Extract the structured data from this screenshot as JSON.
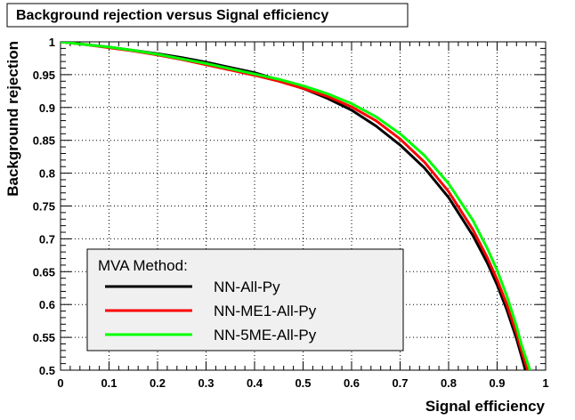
{
  "chart_data": {
    "type": "line",
    "title": "Background rejection versus Signal efficiency",
    "xlabel": "Signal efficiency",
    "ylabel": "Background rejection",
    "xlim": [
      0,
      1
    ],
    "ylim": [
      0.5,
      1
    ],
    "xticks": [
      "0",
      "0.1",
      "0.2",
      "0.3",
      "0.4",
      "0.5",
      "0.6",
      "0.7",
      "0.8",
      "0.9",
      "1"
    ],
    "yticks": [
      "0.5",
      "0.55",
      "0.6",
      "0.65",
      "0.7",
      "0.75",
      "0.8",
      "0.85",
      "0.9",
      "0.95",
      "1"
    ],
    "grid": true,
    "legend_title": "MVA Method:",
    "legend_position": "bottom-left",
    "series": [
      {
        "name": "NN-All-Py",
        "color": "#000000",
        "x": [
          0,
          0.05,
          0.1,
          0.15,
          0.2,
          0.25,
          0.3,
          0.35,
          0.4,
          0.45,
          0.5,
          0.55,
          0.6,
          0.65,
          0.7,
          0.75,
          0.8,
          0.85,
          0.88,
          0.9,
          0.92,
          0.94,
          0.95,
          0.96
        ],
        "y": [
          1.0,
          0.996,
          0.992,
          0.987,
          0.982,
          0.976,
          0.969,
          0.961,
          0.953,
          0.942,
          0.929,
          0.914,
          0.896,
          0.872,
          0.843,
          0.808,
          0.763,
          0.705,
          0.663,
          0.63,
          0.592,
          0.548,
          0.522,
          0.495
        ]
      },
      {
        "name": "NN-ME1-All-Py",
        "color": "#ff0000",
        "x": [
          0,
          0.05,
          0.1,
          0.15,
          0.2,
          0.25,
          0.3,
          0.35,
          0.4,
          0.45,
          0.5,
          0.55,
          0.6,
          0.65,
          0.7,
          0.75,
          0.8,
          0.85,
          0.88,
          0.9,
          0.92,
          0.94,
          0.95,
          0.965
        ],
        "y": [
          1.0,
          0.996,
          0.991,
          0.986,
          0.98,
          0.973,
          0.965,
          0.957,
          0.949,
          0.94,
          0.929,
          0.917,
          0.901,
          0.88,
          0.852,
          0.817,
          0.772,
          0.714,
          0.671,
          0.638,
          0.6,
          0.556,
          0.53,
          0.495
        ]
      },
      {
        "name": "NN-5ME-All-Py",
        "color": "#00ff00",
        "x": [
          0,
          0.05,
          0.1,
          0.15,
          0.2,
          0.25,
          0.3,
          0.35,
          0.4,
          0.45,
          0.5,
          0.55,
          0.6,
          0.65,
          0.7,
          0.75,
          0.8,
          0.85,
          0.88,
          0.9,
          0.92,
          0.94,
          0.95,
          0.97
        ],
        "y": [
          1.0,
          0.996,
          0.992,
          0.987,
          0.981,
          0.974,
          0.967,
          0.959,
          0.951,
          0.943,
          0.933,
          0.921,
          0.906,
          0.886,
          0.86,
          0.827,
          0.784,
          0.728,
          0.685,
          0.652,
          0.613,
          0.567,
          0.539,
          0.495
        ]
      }
    ]
  }
}
